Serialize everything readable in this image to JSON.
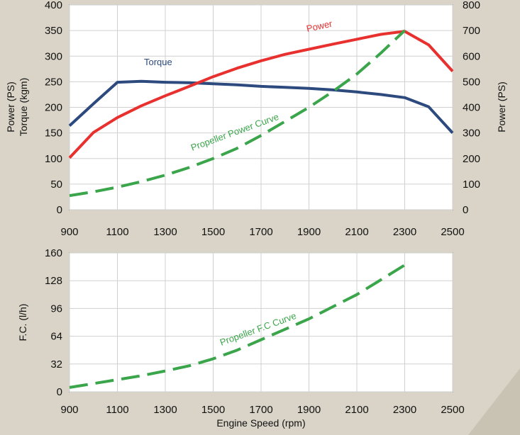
{
  "chart_data": [
    {
      "type": "line",
      "x_ticks": [
        900,
        1100,
        1300,
        1500,
        1700,
        1900,
        2100,
        2300,
        2500
      ],
      "xlim": [
        900,
        2500
      ],
      "y_left": {
        "label_line1": "Power (PS)",
        "label_line2": "Torque (kgm)",
        "ticks": [
          0,
          50,
          100,
          150,
          200,
          250,
          300,
          350,
          400
        ],
        "ylim": [
          0,
          400
        ]
      },
      "y_right": {
        "label": "Power (PS)",
        "ticks": [
          0,
          100,
          200,
          300,
          400,
          500,
          600,
          700,
          800
        ],
        "ylim": [
          0,
          800
        ]
      },
      "grid": true,
      "series": [
        {
          "name": "Torque",
          "axis": "left",
          "color": "#2c4a7e",
          "style": "solid",
          "x": [
            900,
            1000,
            1100,
            1200,
            1300,
            1400,
            1500,
            1600,
            1700,
            1800,
            1900,
            2000,
            2100,
            2200,
            2300,
            2400,
            2500
          ],
          "y": [
            164,
            207,
            249,
            251,
            249,
            248,
            246,
            244,
            241,
            239,
            237,
            234,
            230,
            225,
            219,
            201,
            150
          ]
        },
        {
          "name": "Power",
          "axis": "right",
          "color": "#e8312f",
          "style": "solid",
          "x": [
            900,
            1000,
            1100,
            1200,
            1300,
            1400,
            1500,
            1600,
            1700,
            1800,
            1900,
            2000,
            2100,
            2200,
            2300,
            2400,
            2500
          ],
          "y": [
            203,
            302,
            360,
            406,
            445,
            482,
            520,
            553,
            582,
            607,
            627,
            647,
            666,
            685,
            697,
            644,
            541
          ]
        },
        {
          "name": "Propeller Power Curve",
          "axis": "right",
          "color": "#3aa54a",
          "style": "dashed",
          "x": [
            900,
            1000,
            1100,
            1200,
            1300,
            1400,
            1500,
            1600,
            1700,
            1800,
            1900,
            2000,
            2100,
            2200,
            2300
          ],
          "y": [
            55,
            70,
            88,
            110,
            135,
            165,
            200,
            240,
            290,
            345,
            400,
            462,
            530,
            612,
            700
          ]
        }
      ]
    },
    {
      "type": "line",
      "x_ticks": [
        900,
        1100,
        1300,
        1500,
        1700,
        1900,
        2100,
        2300,
        2500
      ],
      "xlim": [
        900,
        2500
      ],
      "xlabel": "Engine Speed (rpm)",
      "ylabel": "F.C. (l/h)",
      "y_ticks": [
        0,
        32,
        64,
        96,
        128,
        160
      ],
      "ylim": [
        0,
        160
      ],
      "grid": true,
      "series": [
        {
          "name": "Propeller F.C Curve",
          "color": "#3aa54a",
          "style": "dashed",
          "x": [
            900,
            1000,
            1100,
            1200,
            1300,
            1400,
            1500,
            1600,
            1700,
            1800,
            1900,
            2000,
            2100,
            2200,
            2300
          ],
          "y": [
            5,
            9.5,
            14,
            18.5,
            24,
            30,
            38,
            48,
            60,
            72,
            84,
            98,
            112,
            129,
            146
          ]
        }
      ]
    }
  ]
}
